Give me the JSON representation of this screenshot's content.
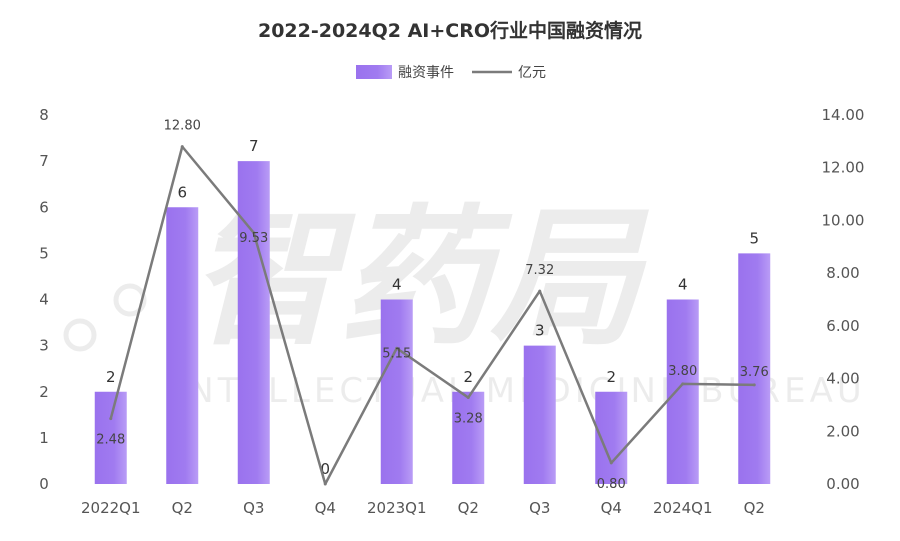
{
  "chart_data": {
    "type": "bar",
    "title": "2022-2024Q2 AI+CRO行业中国融资情况",
    "categories": [
      "2022Q1",
      "Q2",
      "Q3",
      "Q4",
      "2023Q1",
      "Q2",
      "Q3",
      "Q4",
      "2024Q1",
      "Q2"
    ],
    "series": [
      {
        "name": "融资事件",
        "type": "bar",
        "axis": "left",
        "values": [
          2,
          6,
          7,
          0,
          4,
          2,
          3,
          2,
          4,
          5
        ],
        "labels": [
          "2",
          "6",
          "7",
          "0",
          "4",
          "2",
          "3",
          "2",
          "4",
          "5"
        ]
      },
      {
        "name": "亿元",
        "type": "line",
        "axis": "right",
        "values": [
          2.48,
          12.8,
          9.53,
          0,
          5.15,
          3.28,
          7.32,
          0.8,
          3.8,
          3.76
        ],
        "labels": [
          "2.48",
          "12.80",
          "9.53",
          "",
          "5.15",
          "3.28",
          "7.32",
          "0.80",
          "3.80",
          "3.76"
        ]
      }
    ],
    "y_left": {
      "range": [
        0,
        8
      ],
      "ticks": [
        "0",
        "1",
        "2",
        "3",
        "4",
        "5",
        "6",
        "7",
        "8"
      ]
    },
    "y_right": {
      "range": [
        0,
        14
      ],
      "ticks": [
        "0.00",
        "2.00",
        "4.00",
        "6.00",
        "8.00",
        "10.00",
        "12.00",
        "14.00"
      ]
    },
    "legend": {
      "position": "top-center"
    },
    "grid": false,
    "colors": {
      "bar": "#9a72ee",
      "bar_light": "#b394f5",
      "line": "#7b7b7b"
    },
    "watermark": {
      "logo_text": "智药局",
      "sub_text": "INTELLECTUAL MEDICINE BUREAU"
    }
  }
}
